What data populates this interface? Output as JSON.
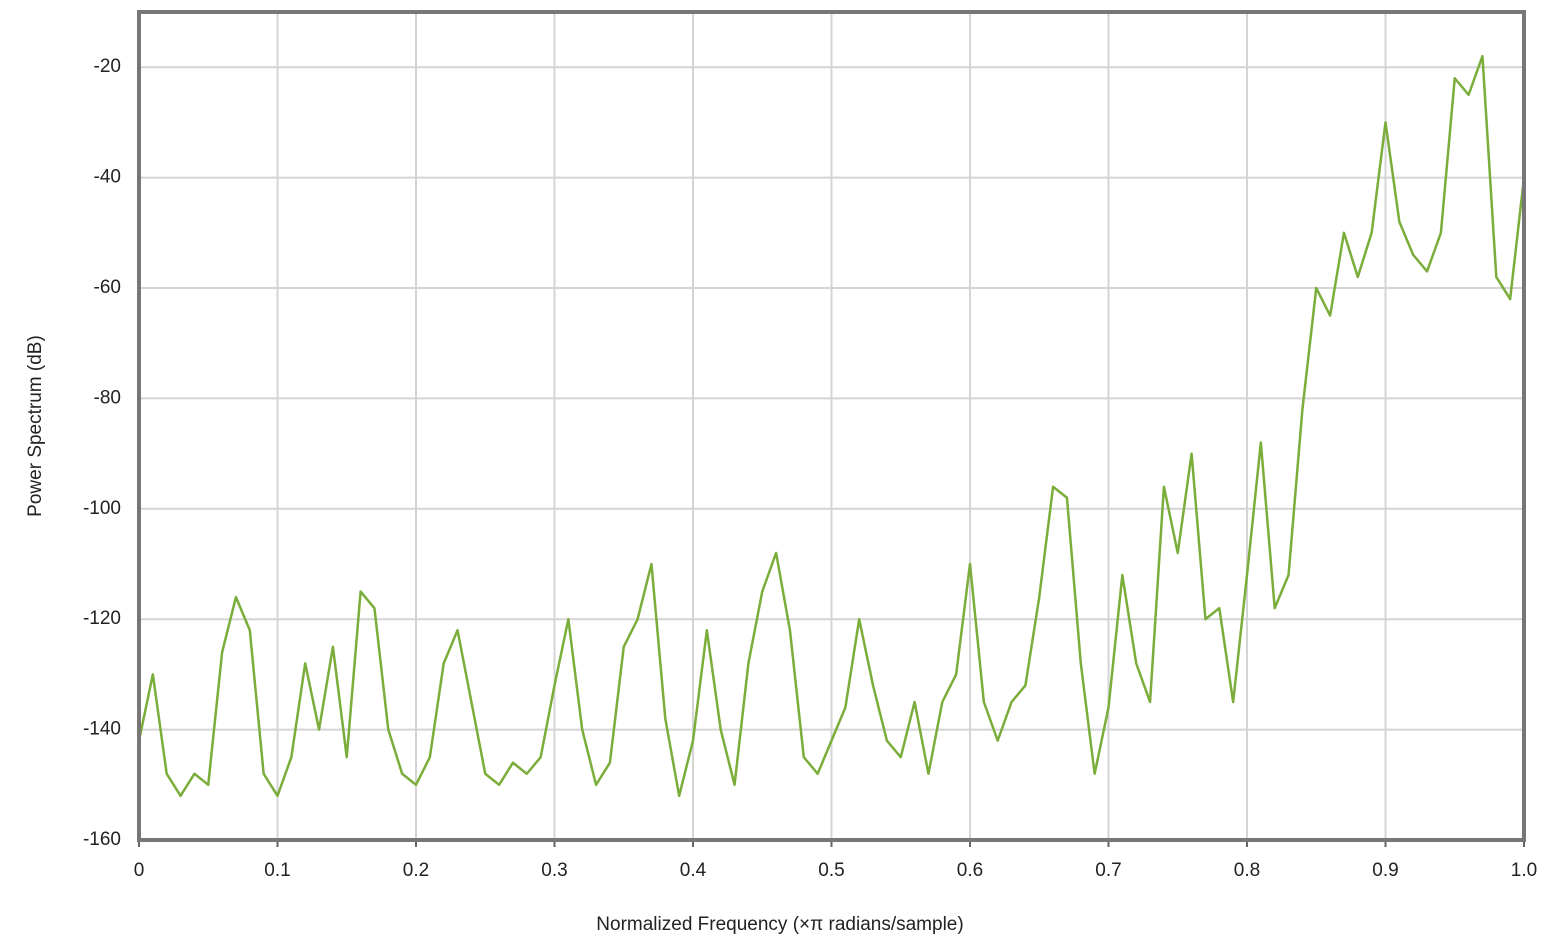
{
  "chart_data": {
    "type": "line",
    "xlabel": "Normalized Frequency (×π radians/sample)",
    "ylabel": "Power Spectrum (dB)",
    "x": [
      0,
      0.01,
      0.02,
      0.03,
      0.04,
      0.05,
      0.06,
      0.07,
      0.08,
      0.09,
      0.1,
      0.11,
      0.12,
      0.13,
      0.14,
      0.15,
      0.16,
      0.17,
      0.18,
      0.19,
      0.2,
      0.21,
      0.22,
      0.23,
      0.24,
      0.25,
      0.26,
      0.27,
      0.28,
      0.29,
      0.3,
      0.31,
      0.32,
      0.33,
      0.34,
      0.35,
      0.36,
      0.37,
      0.38,
      0.39,
      0.4,
      0.41,
      0.42,
      0.43,
      0.44,
      0.45,
      0.46,
      0.47,
      0.48,
      0.49,
      0.5,
      0.51,
      0.52,
      0.53,
      0.54,
      0.55,
      0.56,
      0.57,
      0.58,
      0.59,
      0.6,
      0.61,
      0.62,
      0.63,
      0.64,
      0.65,
      0.66,
      0.67,
      0.68,
      0.69,
      0.7,
      0.71,
      0.72,
      0.73,
      0.74,
      0.75,
      0.76,
      0.77,
      0.78,
      0.79,
      0.8,
      0.81,
      0.82,
      0.83,
      0.84,
      0.85,
      0.86,
      0.87,
      0.88,
      0.89,
      0.9,
      0.91,
      0.92,
      0.93,
      0.94,
      0.95,
      0.96,
      0.97,
      0.98,
      0.99,
      1.0
    ],
    "series": [
      {
        "color": "#7aad3a",
        "values": [
          -142,
          -130,
          -148,
          -152,
          -148,
          -150,
          -126,
          -116,
          -122,
          -148,
          -152,
          -145,
          -128,
          -140,
          -125,
          -145,
          -115,
          -118,
          -140,
          -148,
          -150,
          -145,
          -128,
          -122,
          -135,
          -148,
          -150,
          -146,
          -148,
          -145,
          -132,
          -120,
          -140,
          -150,
          -146,
          -125,
          -120,
          -110,
          -138,
          -152,
          -142,
          -122,
          -140,
          -150,
          -128,
          -115,
          -108,
          -122,
          -145,
          -148,
          -142,
          -136,
          -120,
          -132,
          -142,
          -145,
          -135,
          -148,
          -135,
          -130,
          -110,
          -135,
          -142,
          -135,
          -132,
          -116,
          -96,
          -98,
          -128,
          -148,
          -136,
          -112,
          -128,
          -135,
          -96,
          -108,
          -90,
          -120,
          -118,
          -135,
          -112,
          -88,
          -118,
          -112,
          -82,
          -60,
          -65,
          -50,
          -58,
          -50,
          -30,
          -48,
          -54,
          -57,
          -50,
          -22,
          -25,
          -18,
          -58,
          -62,
          -40
        ]
      }
    ],
    "xlim": [
      0,
      1
    ],
    "ylim": [
      -160,
      -10
    ],
    "xticks": [
      0,
      0.1,
      0.2,
      0.3,
      0.4,
      0.5,
      0.6,
      0.7,
      0.8,
      0.9,
      {
        "value": 1,
        "label": "1.0"
      }
    ],
    "yticks": [
      -160,
      -140,
      -120,
      -100,
      -80,
      -60,
      -40,
      -20
    ],
    "grid": true
  }
}
